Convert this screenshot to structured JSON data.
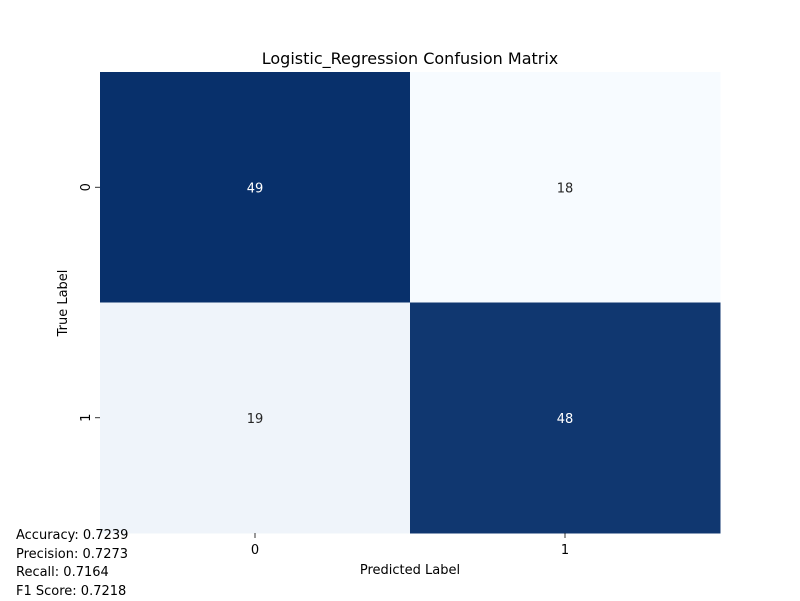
{
  "chart_data": {
    "type": "heatmap",
    "title": "Logistic_Regression Confusion Matrix",
    "xlabel": "Predicted Label",
    "ylabel": "True Label",
    "x_categories": [
      "0",
      "1"
    ],
    "y_categories": [
      "0",
      "1"
    ],
    "values": [
      [
        49,
        18
      ],
      [
        19,
        48
      ]
    ],
    "colormap": "Blues",
    "colors": {
      "high": "#08306b",
      "high_alt": "#083979",
      "low": "#f7fbff",
      "text_on_dark": "#ffffff",
      "text_on_light": "#262626"
    },
    "colorbar": false,
    "grid": false
  },
  "metrics": [
    {
      "label": "Accuracy",
      "value": "0.7239",
      "text": "Accuracy: 0.7239"
    },
    {
      "label": "Precision",
      "value": "0.7273",
      "text": "Precision: 0.7273"
    },
    {
      "label": "Recall",
      "value": "0.7164",
      "text": "Recall: 0.7164"
    },
    {
      "label": "F1 Score",
      "value": "0.7218",
      "text": "F1 Score: 0.7218"
    }
  ]
}
